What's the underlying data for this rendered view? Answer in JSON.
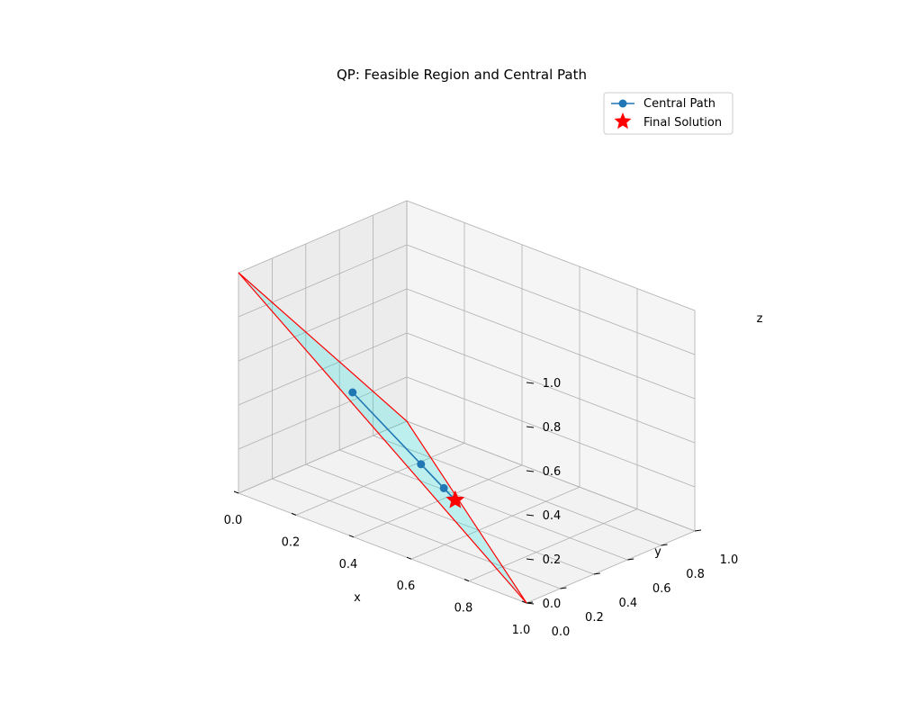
{
  "chart_data": {
    "type": "scatter",
    "title": "QP: Feasible Region and Central Path",
    "xlabel": "x",
    "ylabel": "y",
    "zlabel": "z",
    "xlim": [
      0,
      1
    ],
    "ylim": [
      0,
      1
    ],
    "zlim": [
      0,
      1
    ],
    "x_ticks": [
      0.0,
      0.2,
      0.4,
      0.6,
      0.8,
      1.0
    ],
    "y_ticks": [
      0.0,
      0.2,
      0.4,
      0.6,
      0.8,
      1.0
    ],
    "z_ticks": [
      0.0,
      0.2,
      0.4,
      0.6,
      0.8,
      1.0
    ],
    "x_tick_labels": [
      "0.0",
      "0.2",
      "0.4",
      "0.6",
      "0.8",
      "1.0"
    ],
    "y_tick_labels": [
      "0.0",
      "0.2",
      "0.4",
      "0.6",
      "0.8",
      "1.0"
    ],
    "z_tick_labels": [
      "0.0",
      "0.2",
      "0.4",
      "0.6",
      "0.8",
      "1.0"
    ],
    "grid": true,
    "legend_position": "top-right",
    "feasible_region": {
      "vertices": [
        [
          1,
          0,
          0
        ],
        [
          0,
          1,
          0
        ],
        [
          0,
          0,
          1
        ]
      ],
      "fill_color": "#00e5e5",
      "edge_color": "#ff0000"
    },
    "series": [
      {
        "name": "Central Path",
        "color": "#1f77b4",
        "marker": "circle",
        "points": [
          [
            0.25,
            0.25,
            0.5
          ],
          [
            0.4,
            0.4,
            0.2
          ],
          [
            0.45,
            0.45,
            0.1
          ],
          [
            0.475,
            0.475,
            0.05
          ]
        ]
      },
      {
        "name": "Final Solution",
        "color": "#ff0000",
        "marker": "star",
        "points": [
          [
            0.475,
            0.475,
            0.05
          ]
        ]
      }
    ]
  }
}
